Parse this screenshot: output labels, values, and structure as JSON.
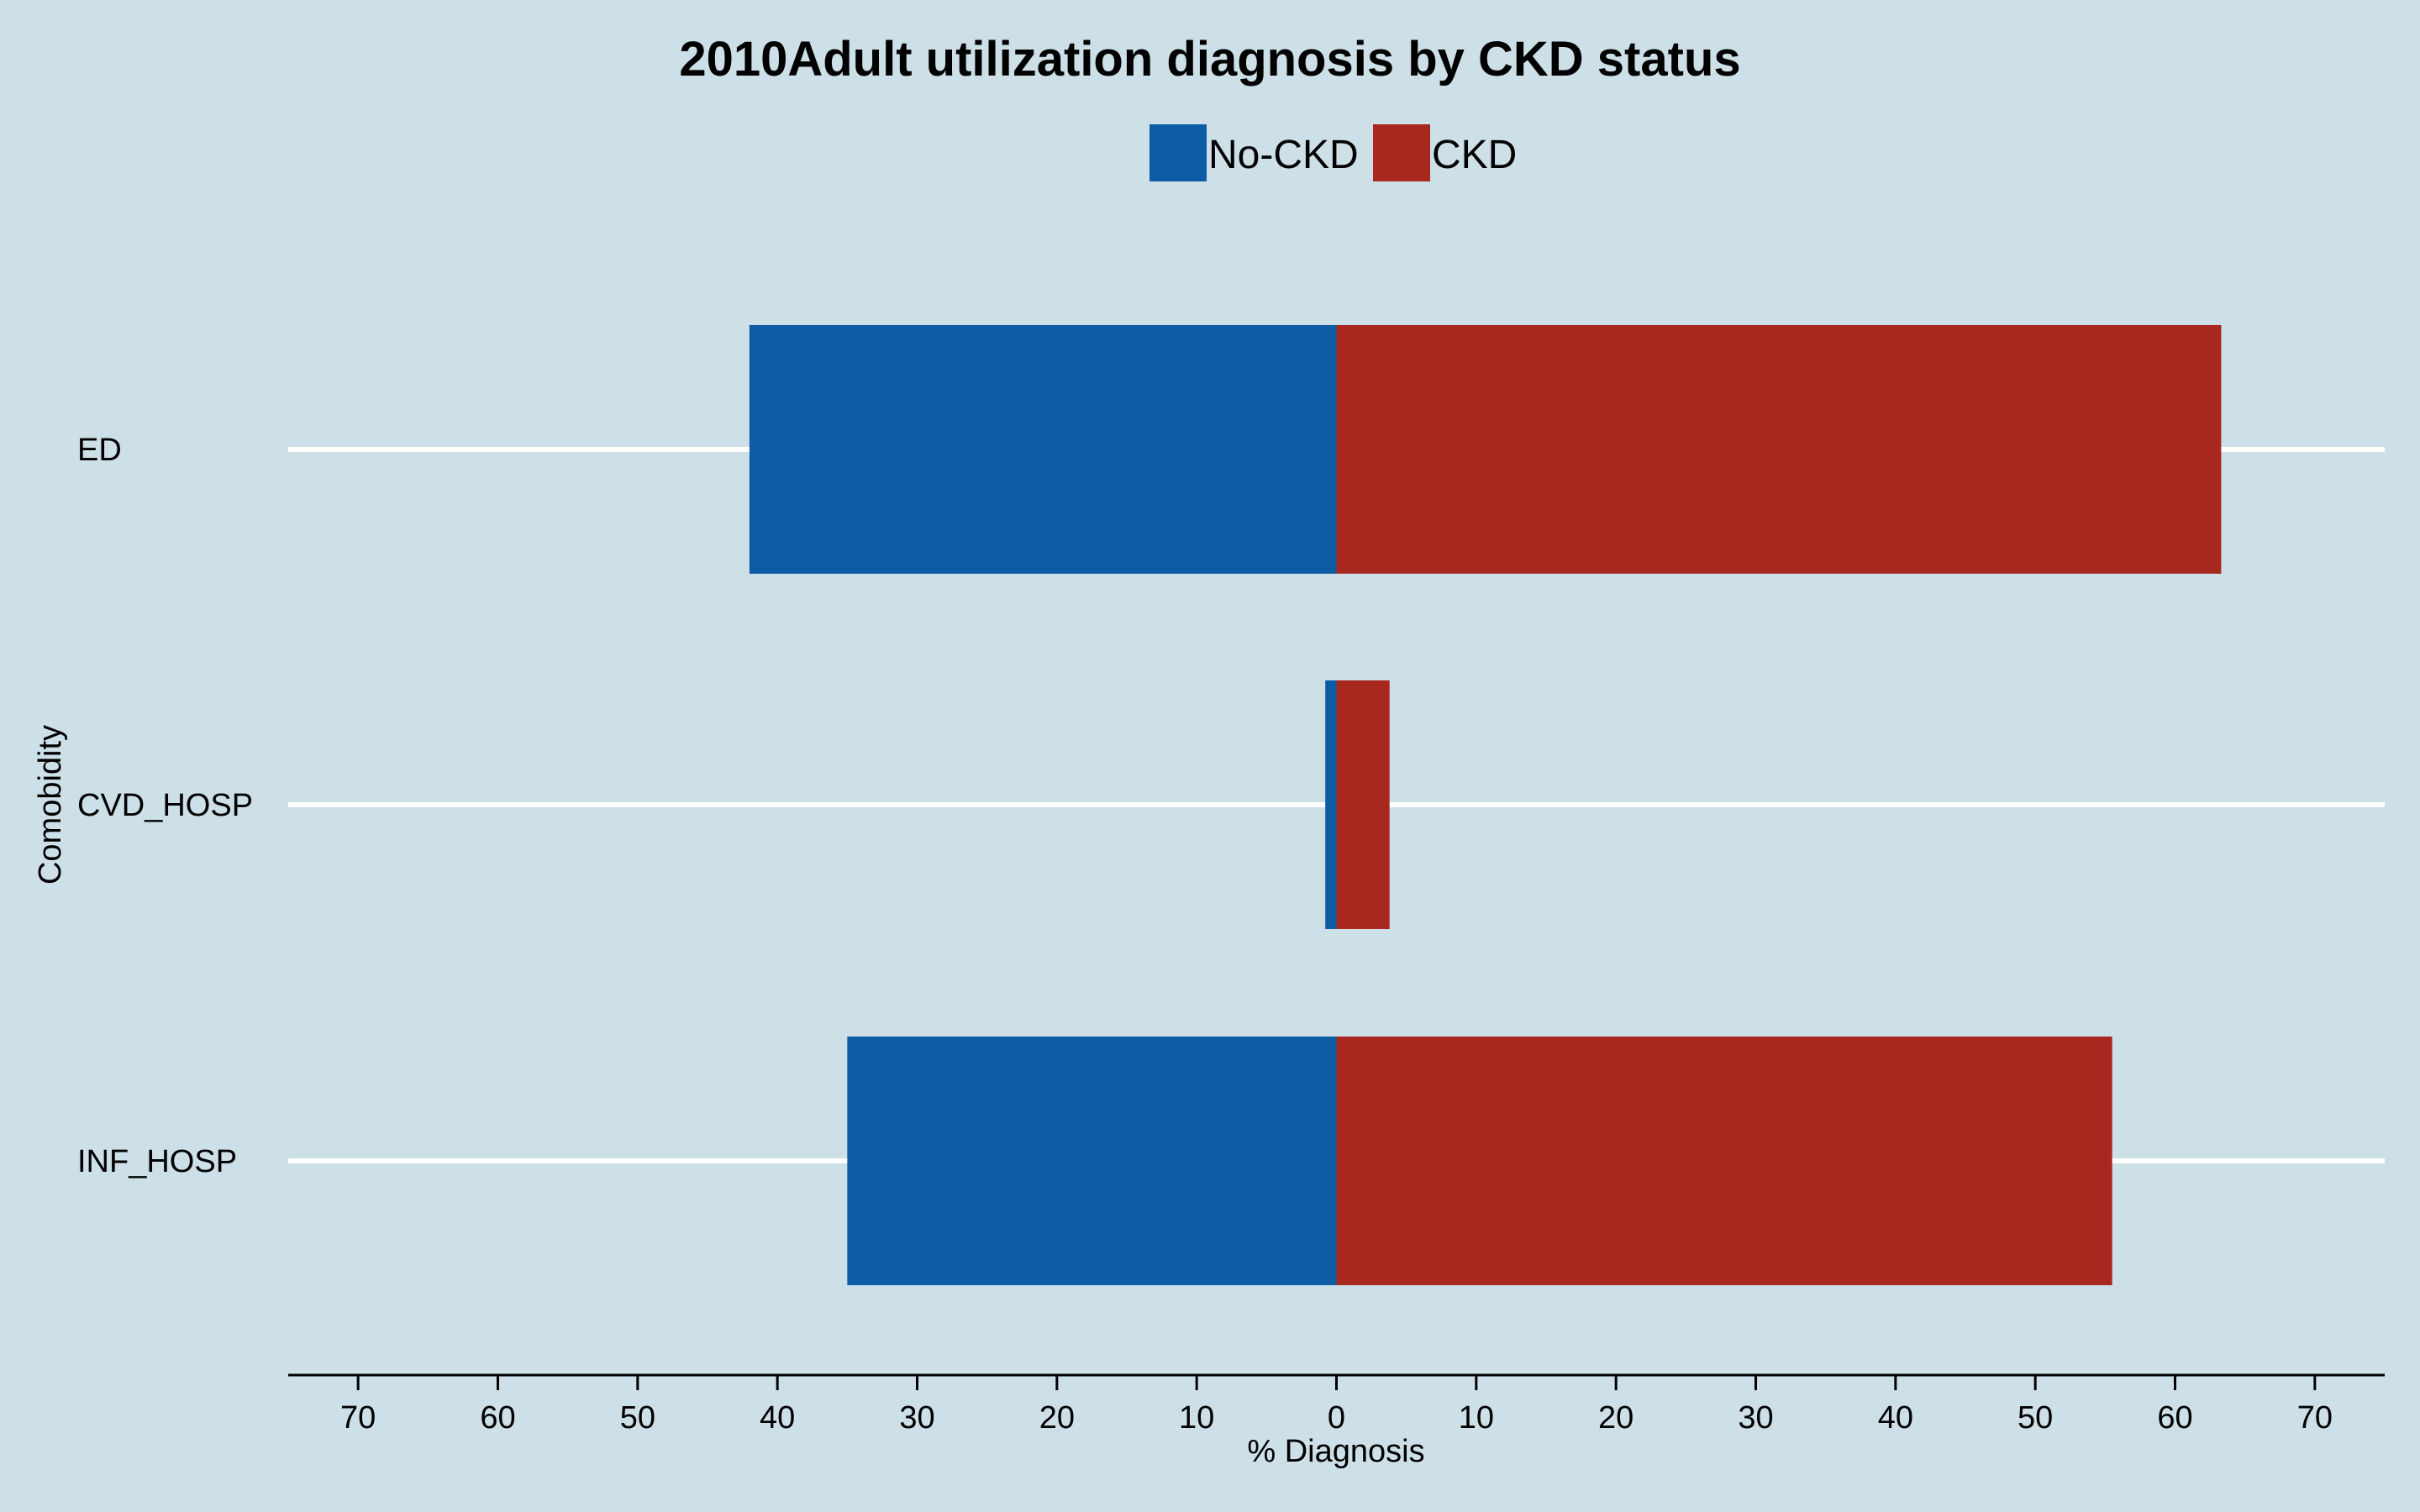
{
  "chart_data": {
    "type": "bar",
    "orientation": "horizontal-diverging",
    "title": "2010Adult utilization diagnosis by CKD status",
    "xlabel": "% Diagnosis",
    "ylabel": "Comobidity",
    "categories": [
      "ED",
      "CVD_HOSP",
      "INF_HOSP"
    ],
    "series": [
      {
        "name": "No-CKD",
        "color": "#0b5ca5",
        "values": [
          42,
          0.8,
          35
        ],
        "direction": "left"
      },
      {
        "name": "CKD",
        "color": "#a8271f",
        "values": [
          63.3,
          3.8,
          55.5
        ],
        "direction": "right"
      }
    ],
    "xlim": [
      -75,
      75
    ],
    "ticks": [
      -70,
      -60,
      -50,
      -40,
      -30,
      -20,
      -10,
      0,
      10,
      20,
      30,
      40,
      50,
      60,
      70
    ],
    "tick_labels": [
      "70",
      "60",
      "50",
      "40",
      "30",
      "20",
      "10",
      "0",
      "10",
      "20",
      "30",
      "40",
      "50",
      "60",
      "70"
    ],
    "legend_position": "top-center",
    "grid": "horizontal white lines at categories",
    "background": "#cddfe7"
  }
}
